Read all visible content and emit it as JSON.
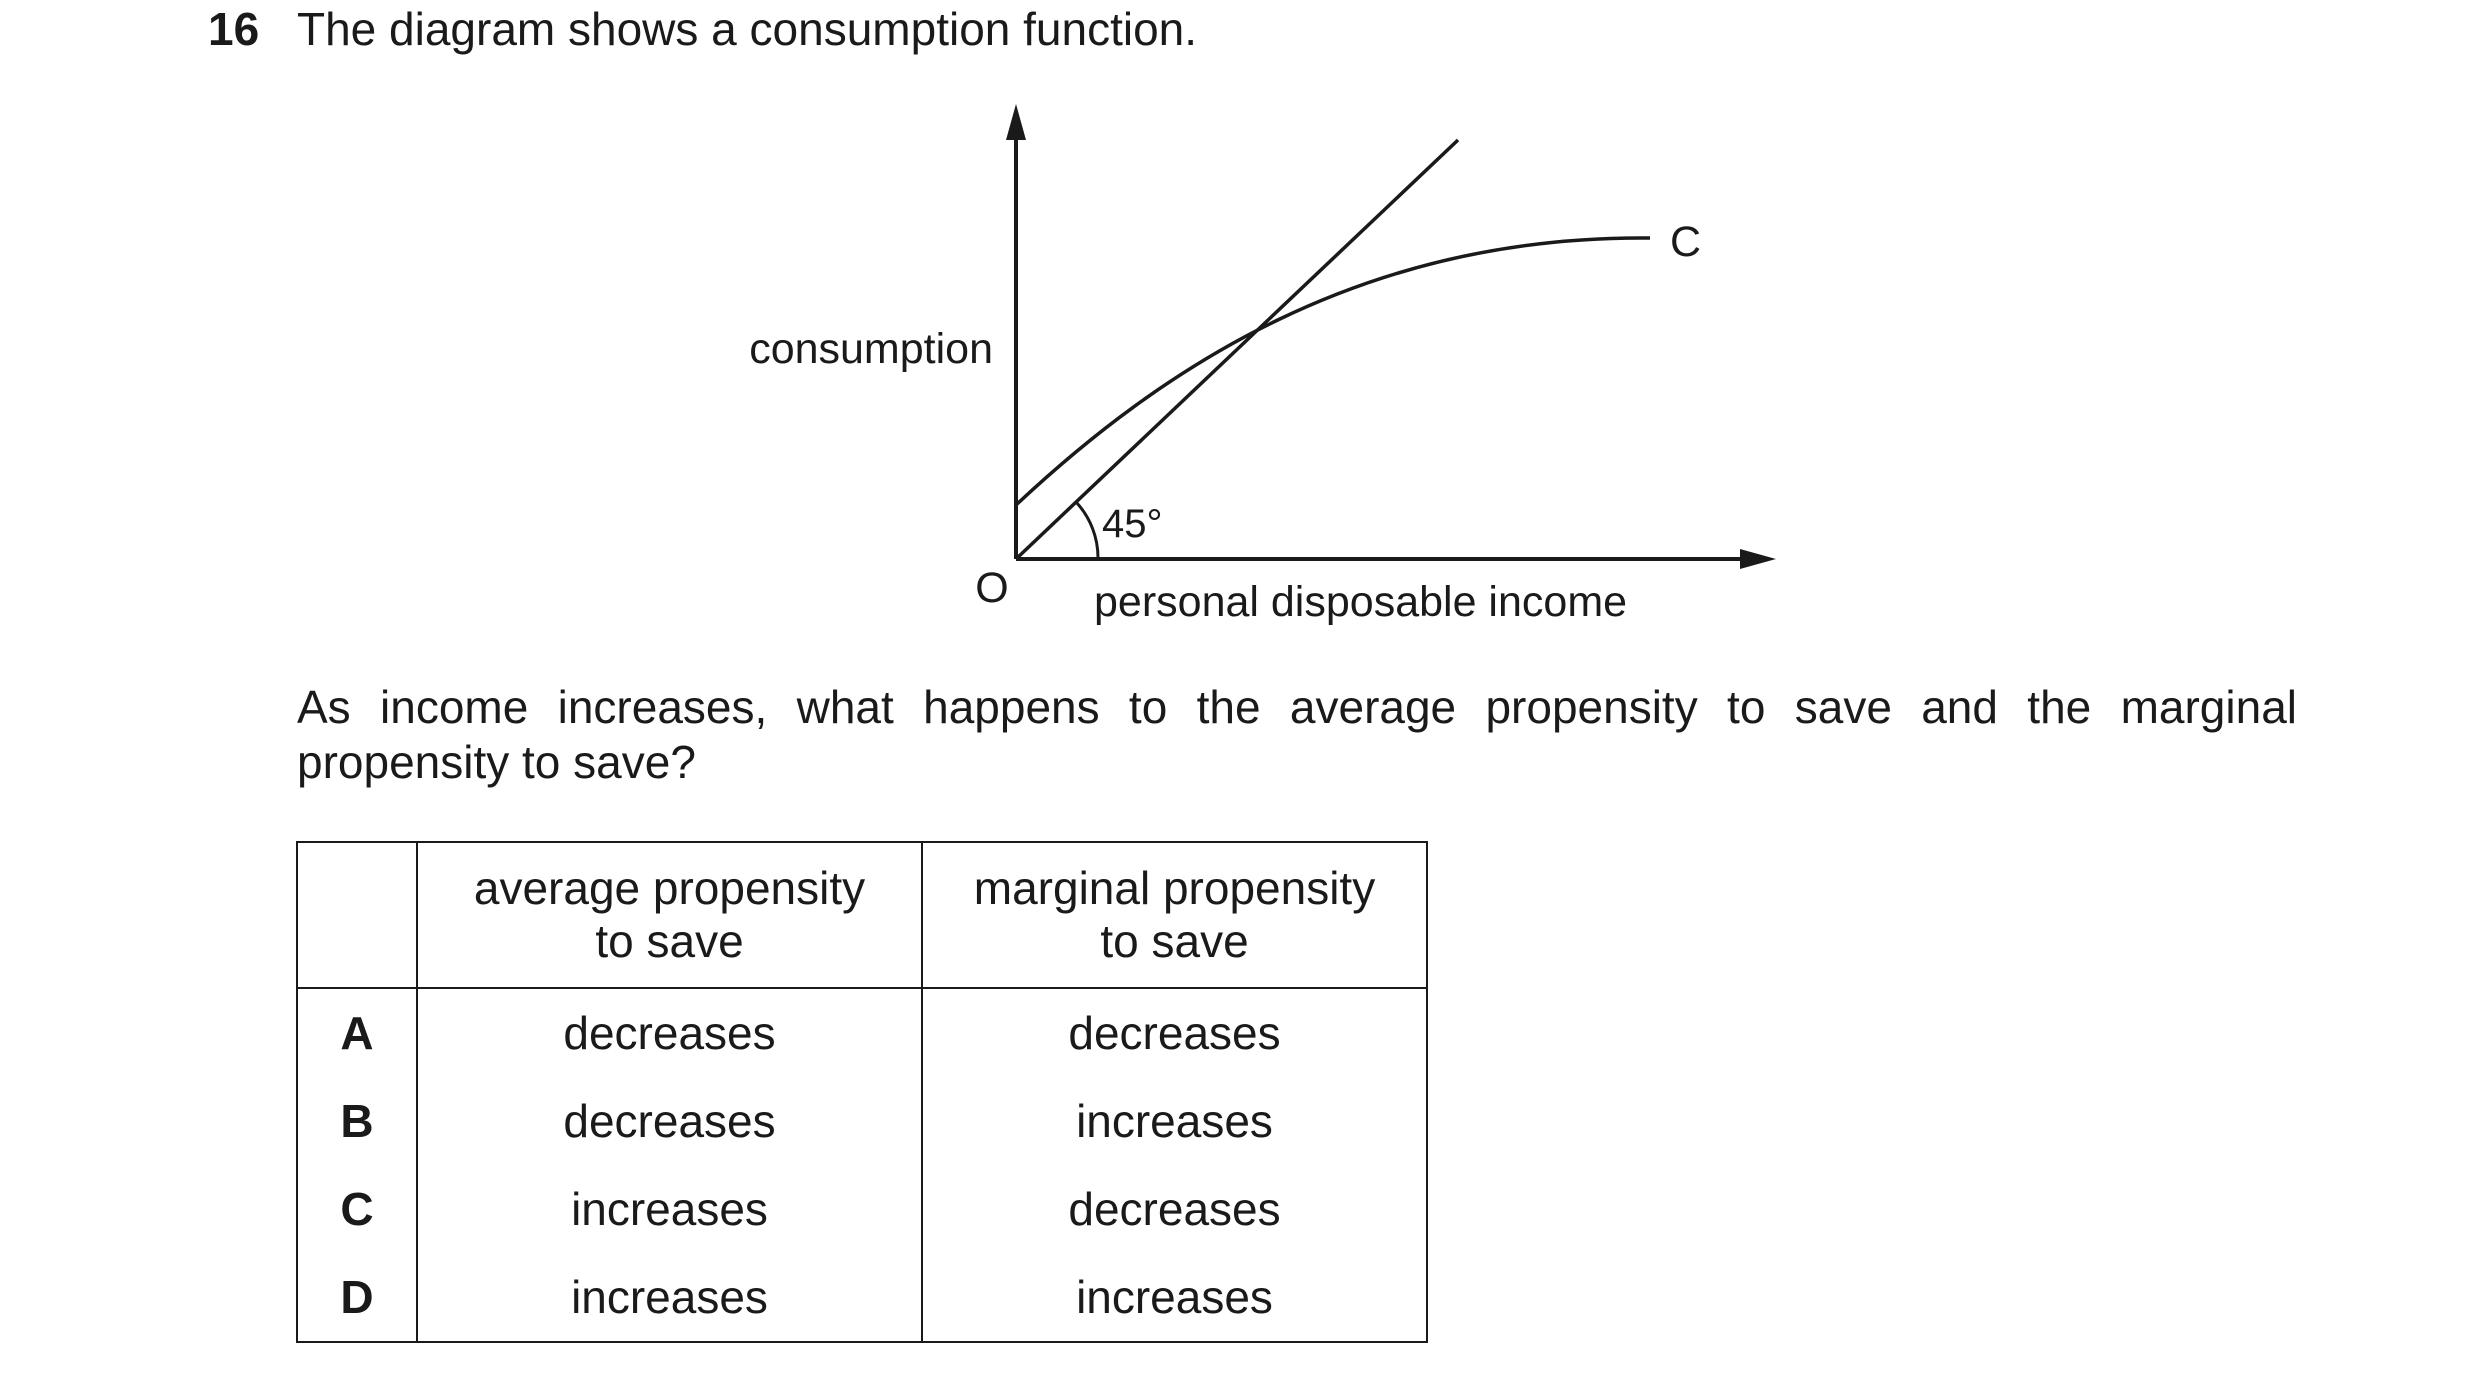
{
  "question": {
    "number": "16",
    "stem": "The diagram shows a consumption function.",
    "prompt": "As income increases, what happens to the average propensity to save and the marginal propensity to save?"
  },
  "diagram": {
    "y_axis_label": "consumption",
    "x_axis_label": "personal disposable income",
    "origin_label": "O",
    "curve_label": "C",
    "angle_label": "45°"
  },
  "table": {
    "headers": {
      "blank": "",
      "aps_line1": "average propensity",
      "aps_line2": "to save",
      "mps_line1": "marginal propensity",
      "mps_line2": "to save"
    },
    "rows": [
      {
        "key": "A",
        "aps": "decreases",
        "mps": "decreases"
      },
      {
        "key": "B",
        "aps": "decreases",
        "mps": "increases"
      },
      {
        "key": "C",
        "aps": "increases",
        "mps": "decreases"
      },
      {
        "key": "D",
        "aps": "increases",
        "mps": "increases"
      }
    ]
  }
}
